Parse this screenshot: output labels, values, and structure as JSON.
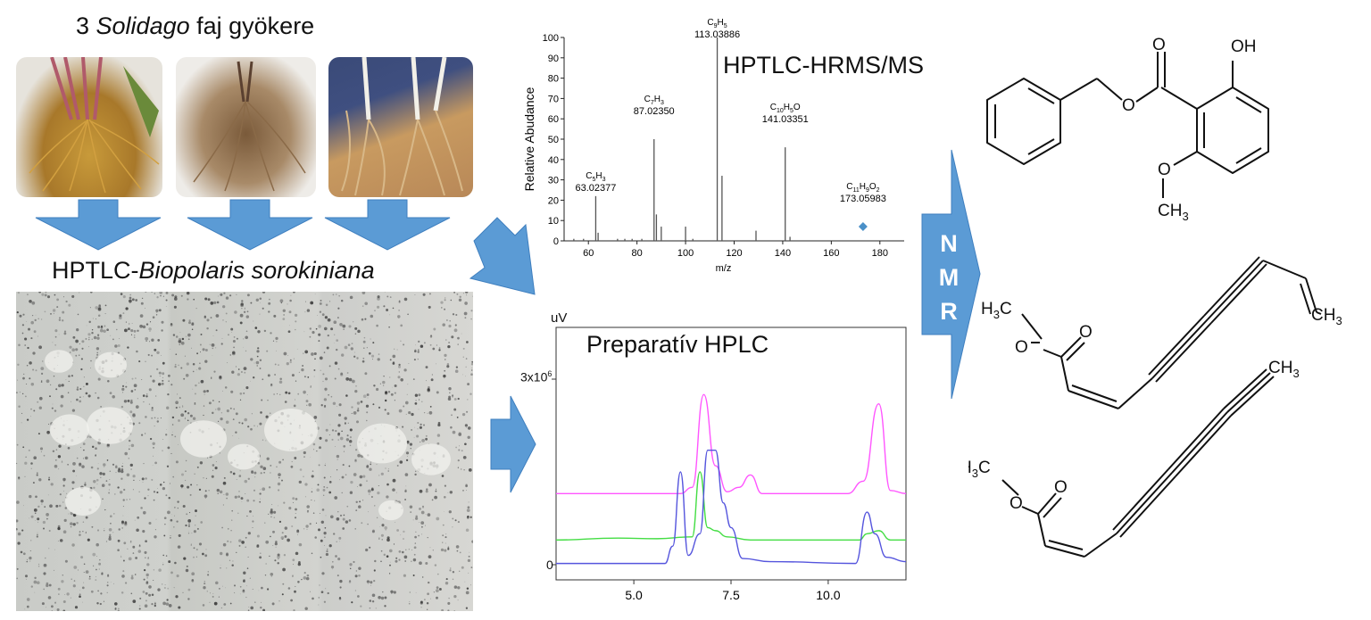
{
  "roots_title": {
    "pre": "3 ",
    "italic": "Solidago",
    "post": " faj gyökere"
  },
  "plate_title": {
    "pre": "HPTLC-",
    "italic": "Biopolaris sorokiniana"
  },
  "colors": {
    "arrow": "#5b9bd5",
    "arrow_edge": "#3f7fbf",
    "magenta": "#ff55ff",
    "green": "#44dd44",
    "blue": "#5555dd",
    "ms_marker": "#4a90c8"
  },
  "ms": {
    "title": "HPTLC-HRMS/MS",
    "ylabel": "Relative Abudance",
    "xlabel": "m/z",
    "yticks": [
      "0",
      "10",
      "20",
      "30",
      "40",
      "50",
      "60",
      "70",
      "80",
      "90",
      "100"
    ],
    "xticks": [
      "60",
      "80",
      "100",
      "120",
      "140",
      "160",
      "180"
    ],
    "peaks": [
      {
        "label": "C5H3",
        "f": "C",
        "s1": "5",
        "e": "H",
        "s2": "3",
        "mz": "63.02377"
      },
      {
        "label": "C7H3",
        "f": "C",
        "s1": "7",
        "e": "H",
        "s2": "3",
        "mz": "87.02350"
      },
      {
        "label": "C9H5",
        "f": "C",
        "s1": "9",
        "e": "H",
        "s2": "5",
        "mz": "113.03886"
      },
      {
        "label": "C10H5O",
        "f": "C",
        "s1": "10",
        "e": "H",
        "s2": "5",
        "e2": "O",
        "mz": "141.03351"
      },
      {
        "label": "C11H9O2",
        "f": "C",
        "s1": "11",
        "e": "H",
        "s2": "9",
        "e2": "O",
        "s3": "2",
        "mz": "173.05983"
      }
    ]
  },
  "chart_data": [
    {
      "type": "bar",
      "title": "HPTLC-HRMS/MS",
      "xlabel": "m/z",
      "ylabel": "Relative Abudance",
      "xlim": [
        50,
        190
      ],
      "ylim": [
        0,
        100
      ],
      "x": [
        54,
        58,
        63.02,
        64,
        72,
        75,
        78,
        82,
        87.02,
        88,
        90,
        100,
        103,
        113.04,
        115,
        129,
        141.03,
        143,
        173.06
      ],
      "values": [
        1,
        1,
        22,
        4,
        1,
        1,
        1,
        1,
        50,
        13,
        7,
        7,
        1,
        100,
        32,
        5,
        46,
        2,
        7
      ]
    },
    {
      "type": "line",
      "title": "Preparatív HPLC",
      "ylabel": "uV",
      "xlim": [
        3.0,
        12.0
      ],
      "xticks": [
        "5.0",
        "7.5",
        "10.0"
      ],
      "yticks": [
        "0",
        "3x10"
      ],
      "series": [
        {
          "name": "magenta",
          "color": "#ff55ff",
          "x": [
            3.0,
            6.2,
            6.5,
            6.8,
            7.1,
            7.4,
            7.7,
            8.0,
            8.3,
            10.5,
            10.9,
            11.3,
            11.6,
            12.0
          ],
          "y": [
            1.15,
            1.15,
            1.25,
            2.75,
            1.6,
            1.18,
            1.25,
            1.45,
            1.15,
            1.15,
            1.35,
            2.6,
            1.2,
            1.15
          ]
        },
        {
          "name": "green",
          "color": "#44dd44",
          "x": [
            3.0,
            4.6,
            5.6,
            6.5,
            6.7,
            6.9,
            7.1,
            7.4,
            8.0,
            10.8,
            11.0,
            11.3,
            11.6,
            12.0
          ],
          "y": [
            0.4,
            0.43,
            0.42,
            0.45,
            1.5,
            0.6,
            0.55,
            0.45,
            0.4,
            0.4,
            0.5,
            0.55,
            0.4,
            0.4
          ]
        },
        {
          "name": "blue",
          "color": "#5555dd",
          "x": [
            3.0,
            5.8,
            6.0,
            6.2,
            6.4,
            6.7,
            6.9,
            7.1,
            7.3,
            7.5,
            7.8,
            8.5,
            10.7,
            11.0,
            11.2,
            11.5,
            12.0
          ],
          "y": [
            0.02,
            0.02,
            0.3,
            1.5,
            0.15,
            0.5,
            1.85,
            1.85,
            1.0,
            0.6,
            0.1,
            0.05,
            0.02,
            0.85,
            0.5,
            0.12,
            0.05
          ]
        }
      ]
    }
  ],
  "hplc": {
    "title": "Preparatív HPLC",
    "ylabel": "uV",
    "ytop_base": "3x10",
    "ytop_exp": "6",
    "yzero": "0",
    "xticks": [
      "5.0",
      "7.5",
      "10.0"
    ]
  },
  "nmr": {
    "letters": [
      "N",
      "M",
      "R"
    ]
  },
  "chem": {
    "s1": {
      "o1": "O",
      "oh": "OH",
      "o2": "O",
      "o3": "O",
      "ch3": "CH",
      "ch3_sub": "3"
    },
    "s2": {
      "h3c": "H",
      "h3c_sub": "3",
      "h3c_c": "C",
      "o1": "O",
      "o2": "O",
      "ch3": "CH",
      "ch3_sub": "3"
    },
    "s3": {
      "h3c": "H",
      "h3c_sub": "3",
      "h3c_c": "C",
      "o1": "O",
      "o2": "O",
      "ch3": "CH",
      "ch3_sub": "3"
    }
  }
}
